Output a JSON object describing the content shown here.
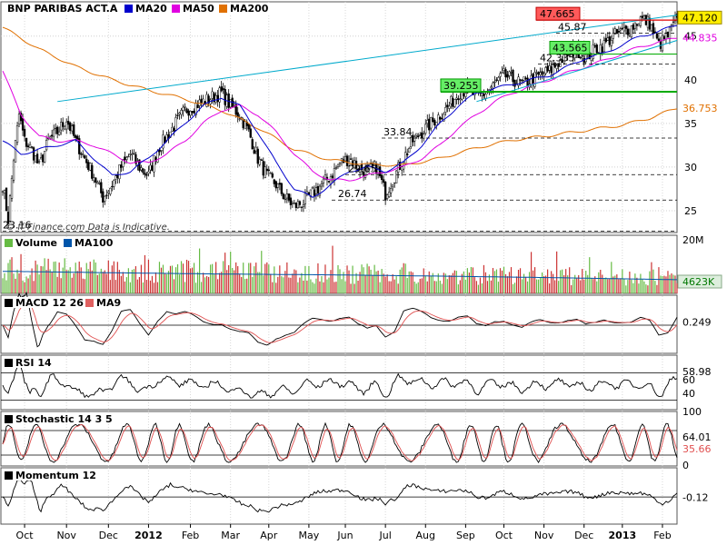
{
  "chart_data": [
    {
      "type": "candlestick",
      "title": "BNP PARIBAS ACT.A",
      "legend": [
        {
          "name": "MA20",
          "color": "#0000cc"
        },
        {
          "name": "MA50",
          "color": "#e000e0"
        },
        {
          "name": "MA200",
          "color": "#e07000"
        }
      ],
      "source": "© ff-Finance.com  Data is Indicative.",
      "y_ticks": [
        25,
        30,
        35,
        40,
        45
      ],
      "ylim": [
        22.5,
        48.3
      ],
      "last_price": "47.120",
      "ma50_last": "44.835",
      "ma200_last": "36.753",
      "annotations": [
        {
          "label": "47.665",
          "value": 47.665,
          "style": "red-box"
        },
        {
          "label": "45.87",
          "value": 45.87,
          "style": "dashed"
        },
        {
          "label": "43.565",
          "value": 43.565,
          "style": "green-box"
        },
        {
          "label": "42.335",
          "value": 42.335,
          "style": "dashed"
        },
        {
          "label": "39.255",
          "value": 39.255,
          "style": "green-box"
        },
        {
          "label": "33.84",
          "value": 33.84,
          "style": "dashed"
        },
        {
          "label": "29.65",
          "value": 29.65,
          "style": "dashed"
        },
        {
          "label": "26.74",
          "value": 26.74,
          "style": "dashed"
        },
        {
          "label": "23.16",
          "value": 23.16,
          "style": "dashed"
        }
      ],
      "close_path": [
        [
          0,
          28
        ],
        [
          3,
          24
        ],
        [
          6,
          31
        ],
        [
          9,
          36
        ],
        [
          12,
          33
        ],
        [
          16,
          32
        ],
        [
          20,
          30
        ],
        [
          25,
          33
        ],
        [
          30,
          34
        ],
        [
          35,
          35.5
        ],
        [
          40,
          33
        ],
        [
          45,
          31
        ],
        [
          50,
          29
        ],
        [
          55,
          26.5
        ],
        [
          60,
          28
        ],
        [
          65,
          30
        ],
        [
          70,
          31.5
        ],
        [
          75,
          30
        ],
        [
          80,
          29
        ],
        [
          85,
          32
        ],
        [
          90,
          33.5
        ],
        [
          95,
          35
        ],
        [
          100,
          36.5
        ],
        [
          105,
          37
        ],
        [
          110,
          37.5
        ],
        [
          115,
          38
        ],
        [
          120,
          38.5
        ],
        [
          125,
          37
        ],
        [
          130,
          36
        ],
        [
          135,
          34
        ],
        [
          140,
          31
        ],
        [
          145,
          29
        ],
        [
          150,
          28
        ],
        [
          155,
          26.5
        ],
        [
          160,
          25.5
        ],
        [
          165,
          26
        ],
        [
          170,
          27
        ],
        [
          175,
          28
        ],
        [
          180,
          29
        ],
        [
          185,
          30.5
        ],
        [
          190,
          31
        ],
        [
          195,
          30
        ],
        [
          200,
          29.5
        ],
        [
          205,
          30
        ],
        [
          210,
          27
        ],
        [
          215,
          29
        ],
        [
          220,
          31
        ],
        [
          225,
          33
        ],
        [
          230,
          34
        ],
        [
          235,
          35
        ],
        [
          240,
          36
        ],
        [
          245,
          37
        ],
        [
          250,
          38.5
        ],
        [
          255,
          39
        ],
        [
          260,
          38
        ],
        [
          265,
          38.5
        ],
        [
          270,
          39.5
        ],
        [
          275,
          40.5
        ],
        [
          280,
          40
        ],
        [
          285,
          39.5
        ],
        [
          290,
          40
        ],
        [
          295,
          40.5
        ],
        [
          300,
          41
        ],
        [
          305,
          42
        ],
        [
          310,
          43
        ],
        [
          315,
          43.5
        ],
        [
          320,
          42.5
        ],
        [
          325,
          43.5
        ],
        [
          330,
          44
        ],
        [
          335,
          45
        ],
        [
          340,
          45.5
        ],
        [
          345,
          46
        ],
        [
          350,
          47
        ],
        [
          355,
          46.5
        ],
        [
          360,
          44
        ],
        [
          365,
          45
        ],
        [
          370,
          47.12
        ]
      ],
      "ma20_path": [
        [
          0,
          33
        ],
        [
          10,
          31.5
        ],
        [
          20,
          32
        ],
        [
          30,
          32.5
        ],
        [
          40,
          33
        ],
        [
          50,
          31
        ],
        [
          60,
          29
        ],
        [
          70,
          29.5
        ],
        [
          80,
          31
        ],
        [
          90,
          33
        ],
        [
          100,
          35
        ],
        [
          110,
          37
        ],
        [
          120,
          38
        ],
        [
          130,
          37
        ],
        [
          140,
          34
        ],
        [
          150,
          30.5
        ],
        [
          160,
          27.5
        ],
        [
          170,
          26.5
        ],
        [
          180,
          28
        ],
        [
          190,
          29.5
        ],
        [
          200,
          30
        ],
        [
          210,
          29.5
        ],
        [
          220,
          30.5
        ],
        [
          230,
          32.5
        ],
        [
          240,
          35
        ],
        [
          250,
          37
        ],
        [
          260,
          38.5
        ],
        [
          270,
          39
        ],
        [
          280,
          39.5
        ],
        [
          290,
          40
        ],
        [
          300,
          40.5
        ],
        [
          310,
          41.5
        ],
        [
          320,
          42.5
        ],
        [
          330,
          43
        ],
        [
          340,
          44
        ],
        [
          350,
          45
        ],
        [
          360,
          45.5
        ],
        [
          370,
          46.3
        ]
      ],
      "ma50_path": [
        [
          0,
          41
        ],
        [
          10,
          36
        ],
        [
          20,
          33.5
        ],
        [
          30,
          33
        ],
        [
          40,
          33
        ],
        [
          50,
          32.5
        ],
        [
          60,
          31.5
        ],
        [
          70,
          30.5
        ],
        [
          80,
          30.5
        ],
        [
          90,
          31.5
        ],
        [
          100,
          33
        ],
        [
          110,
          35
        ],
        [
          120,
          36.5
        ],
        [
          130,
          37
        ],
        [
          140,
          36
        ],
        [
          150,
          34
        ],
        [
          160,
          31.5
        ],
        [
          170,
          29.5
        ],
        [
          180,
          28.5
        ],
        [
          190,
          28.5
        ],
        [
          200,
          29
        ],
        [
          210,
          29.5
        ],
        [
          220,
          30
        ],
        [
          230,
          31
        ],
        [
          240,
          32.5
        ],
        [
          250,
          34.5
        ],
        [
          260,
          36
        ],
        [
          270,
          37.5
        ],
        [
          280,
          38.5
        ],
        [
          290,
          39.3
        ],
        [
          300,
          40
        ],
        [
          310,
          40.8
        ],
        [
          320,
          41.5
        ],
        [
          330,
          42.2
        ],
        [
          340,
          43
        ],
        [
          350,
          43.8
        ],
        [
          360,
          44.3
        ],
        [
          370,
          44.835
        ]
      ],
      "ma200_path": [
        [
          0,
          46
        ],
        [
          20,
          43.5
        ],
        [
          40,
          41.5
        ],
        [
          60,
          40
        ],
        [
          80,
          38.8
        ],
        [
          100,
          37.8
        ],
        [
          120,
          36.5
        ],
        [
          140,
          34.5
        ],
        [
          160,
          32
        ],
        [
          180,
          30.8
        ],
        [
          200,
          30.3
        ],
        [
          220,
          30.2
        ],
        [
          240,
          31
        ],
        [
          260,
          32.2
        ],
        [
          280,
          33.1
        ],
        [
          300,
          33.6
        ],
        [
          320,
          34.2
        ],
        [
          340,
          34.8
        ],
        [
          355,
          35.6
        ],
        [
          370,
          36.753
        ]
      ],
      "trendline": [
        [
          30,
          37.5
        ],
        [
          370,
          47.4
        ]
      ],
      "trendline2": [
        [
          260,
          37.5
        ],
        [
          370,
          44.5
        ]
      ]
    },
    {
      "type": "bar",
      "title": "Volume",
      "legend": [
        {
          "name": "MA100",
          "color": "#0055aa"
        }
      ],
      "y_ticks_labels": [
        "20M"
      ],
      "last_label": "4623K",
      "ma100_path": [
        [
          0,
          10.5
        ],
        [
          60,
          9.8
        ],
        [
          120,
          9.2
        ],
        [
          180,
          8.8
        ],
        [
          240,
          8.2
        ],
        [
          300,
          7.5
        ],
        [
          370,
          6.5
        ]
      ]
    },
    {
      "type": "line",
      "title": "MACD 12 26",
      "legend": [
        {
          "name": "MA9",
          "color": "#e06060"
        }
      ],
      "last_label": "0.249",
      "ylim": [
        -2,
        1.5
      ]
    },
    {
      "type": "line",
      "title": "RSI 14",
      "y_ticks": [
        60,
        40
      ],
      "last_label": "58.98",
      "ylim": [
        20,
        80
      ]
    },
    {
      "type": "line",
      "title": "Stochastic 14 3 5",
      "y_ticks": [
        100,
        0
      ],
      "last_label": "64.01",
      "last_label2": "35.66",
      "ylim": [
        0,
        100
      ]
    },
    {
      "type": "line",
      "title": "Momentum 12",
      "last_label": "-0.12",
      "ylim": [
        -8,
        6
      ]
    }
  ],
  "x_axis": {
    "labels": [
      {
        "label": "Oct",
        "i": 12,
        "bold": false
      },
      {
        "label": "Nov",
        "i": 35,
        "bold": false
      },
      {
        "label": "Dec",
        "i": 58,
        "bold": false
      },
      {
        "label": "2012",
        "i": 80,
        "bold": true
      },
      {
        "label": "Feb",
        "i": 103,
        "bold": false
      },
      {
        "label": "Mar",
        "i": 125,
        "bold": false
      },
      {
        "label": "Apr",
        "i": 146,
        "bold": false
      },
      {
        "label": "May",
        "i": 168,
        "bold": false
      },
      {
        "label": "Jun",
        "i": 188,
        "bold": false
      },
      {
        "label": "Jul",
        "i": 210,
        "bold": false
      },
      {
        "label": "Aug",
        "i": 232,
        "bold": false
      },
      {
        "label": "Sep",
        "i": 254,
        "bold": false
      },
      {
        "label": "Oct",
        "i": 275,
        "bold": false
      },
      {
        "label": "Nov",
        "i": 297,
        "bold": false
      },
      {
        "label": "Dec",
        "i": 319,
        "bold": false
      },
      {
        "label": "2013",
        "i": 340,
        "bold": true
      },
      {
        "label": "Feb",
        "i": 362,
        "bold": false
      }
    ]
  }
}
